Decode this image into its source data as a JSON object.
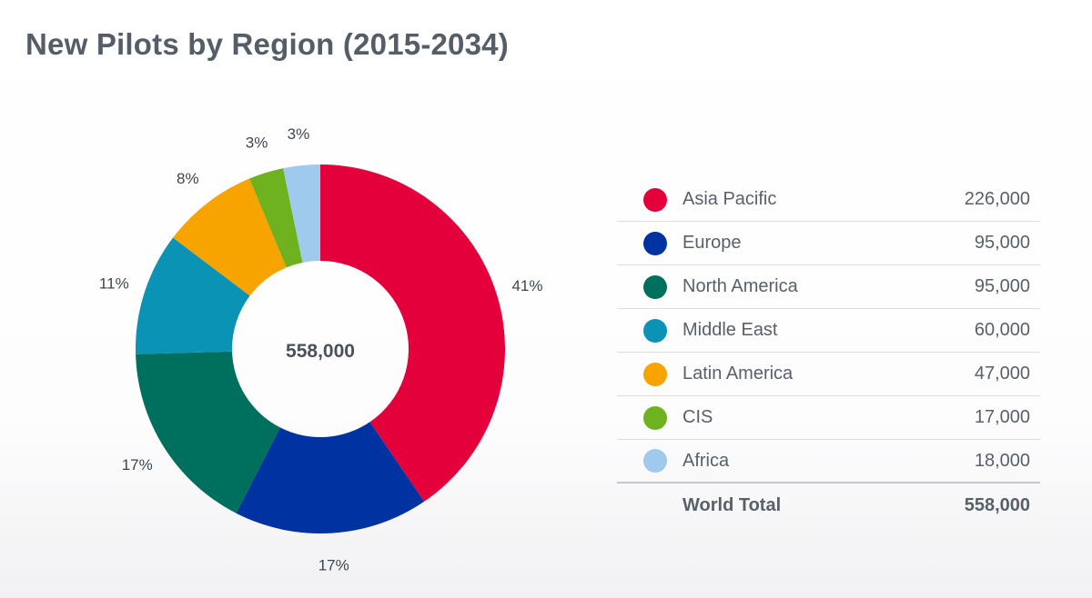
{
  "title": "New Pilots by Region (2015-2034)",
  "chart_data": {
    "type": "pie",
    "variant": "donut",
    "title": "New Pilots by Region (2015-2034)",
    "center_label": "558,000",
    "categories": [
      "Asia Pacific",
      "Europe",
      "North America",
      "Middle East",
      "Latin America",
      "CIS",
      "Africa"
    ],
    "values": [
      226000,
      95000,
      95000,
      60000,
      47000,
      17000,
      18000
    ],
    "percent_labels": [
      "41%",
      "17%",
      "17%",
      "11%",
      "8%",
      "3%",
      "3%"
    ],
    "colors": [
      "#e4003b",
      "#0033a1",
      "#00705e",
      "#0a93b5",
      "#f7a300",
      "#6fb21f",
      "#9fcaee"
    ],
    "total_label": "World Total",
    "total_value": "558,000",
    "legend_position": "right"
  },
  "legend": {
    "rows": [
      {
        "name": "Asia Pacific",
        "value": "226,000"
      },
      {
        "name": "Europe",
        "value": "95,000"
      },
      {
        "name": "North America",
        "value": "95,000"
      },
      {
        "name": "Middle East",
        "value": "60,000"
      },
      {
        "name": "Latin America",
        "value": "47,000"
      },
      {
        "name": "CIS",
        "value": "17,000"
      },
      {
        "name": "Africa",
        "value": "18,000"
      }
    ],
    "total_label": "World Total",
    "total_value": "558,000"
  }
}
